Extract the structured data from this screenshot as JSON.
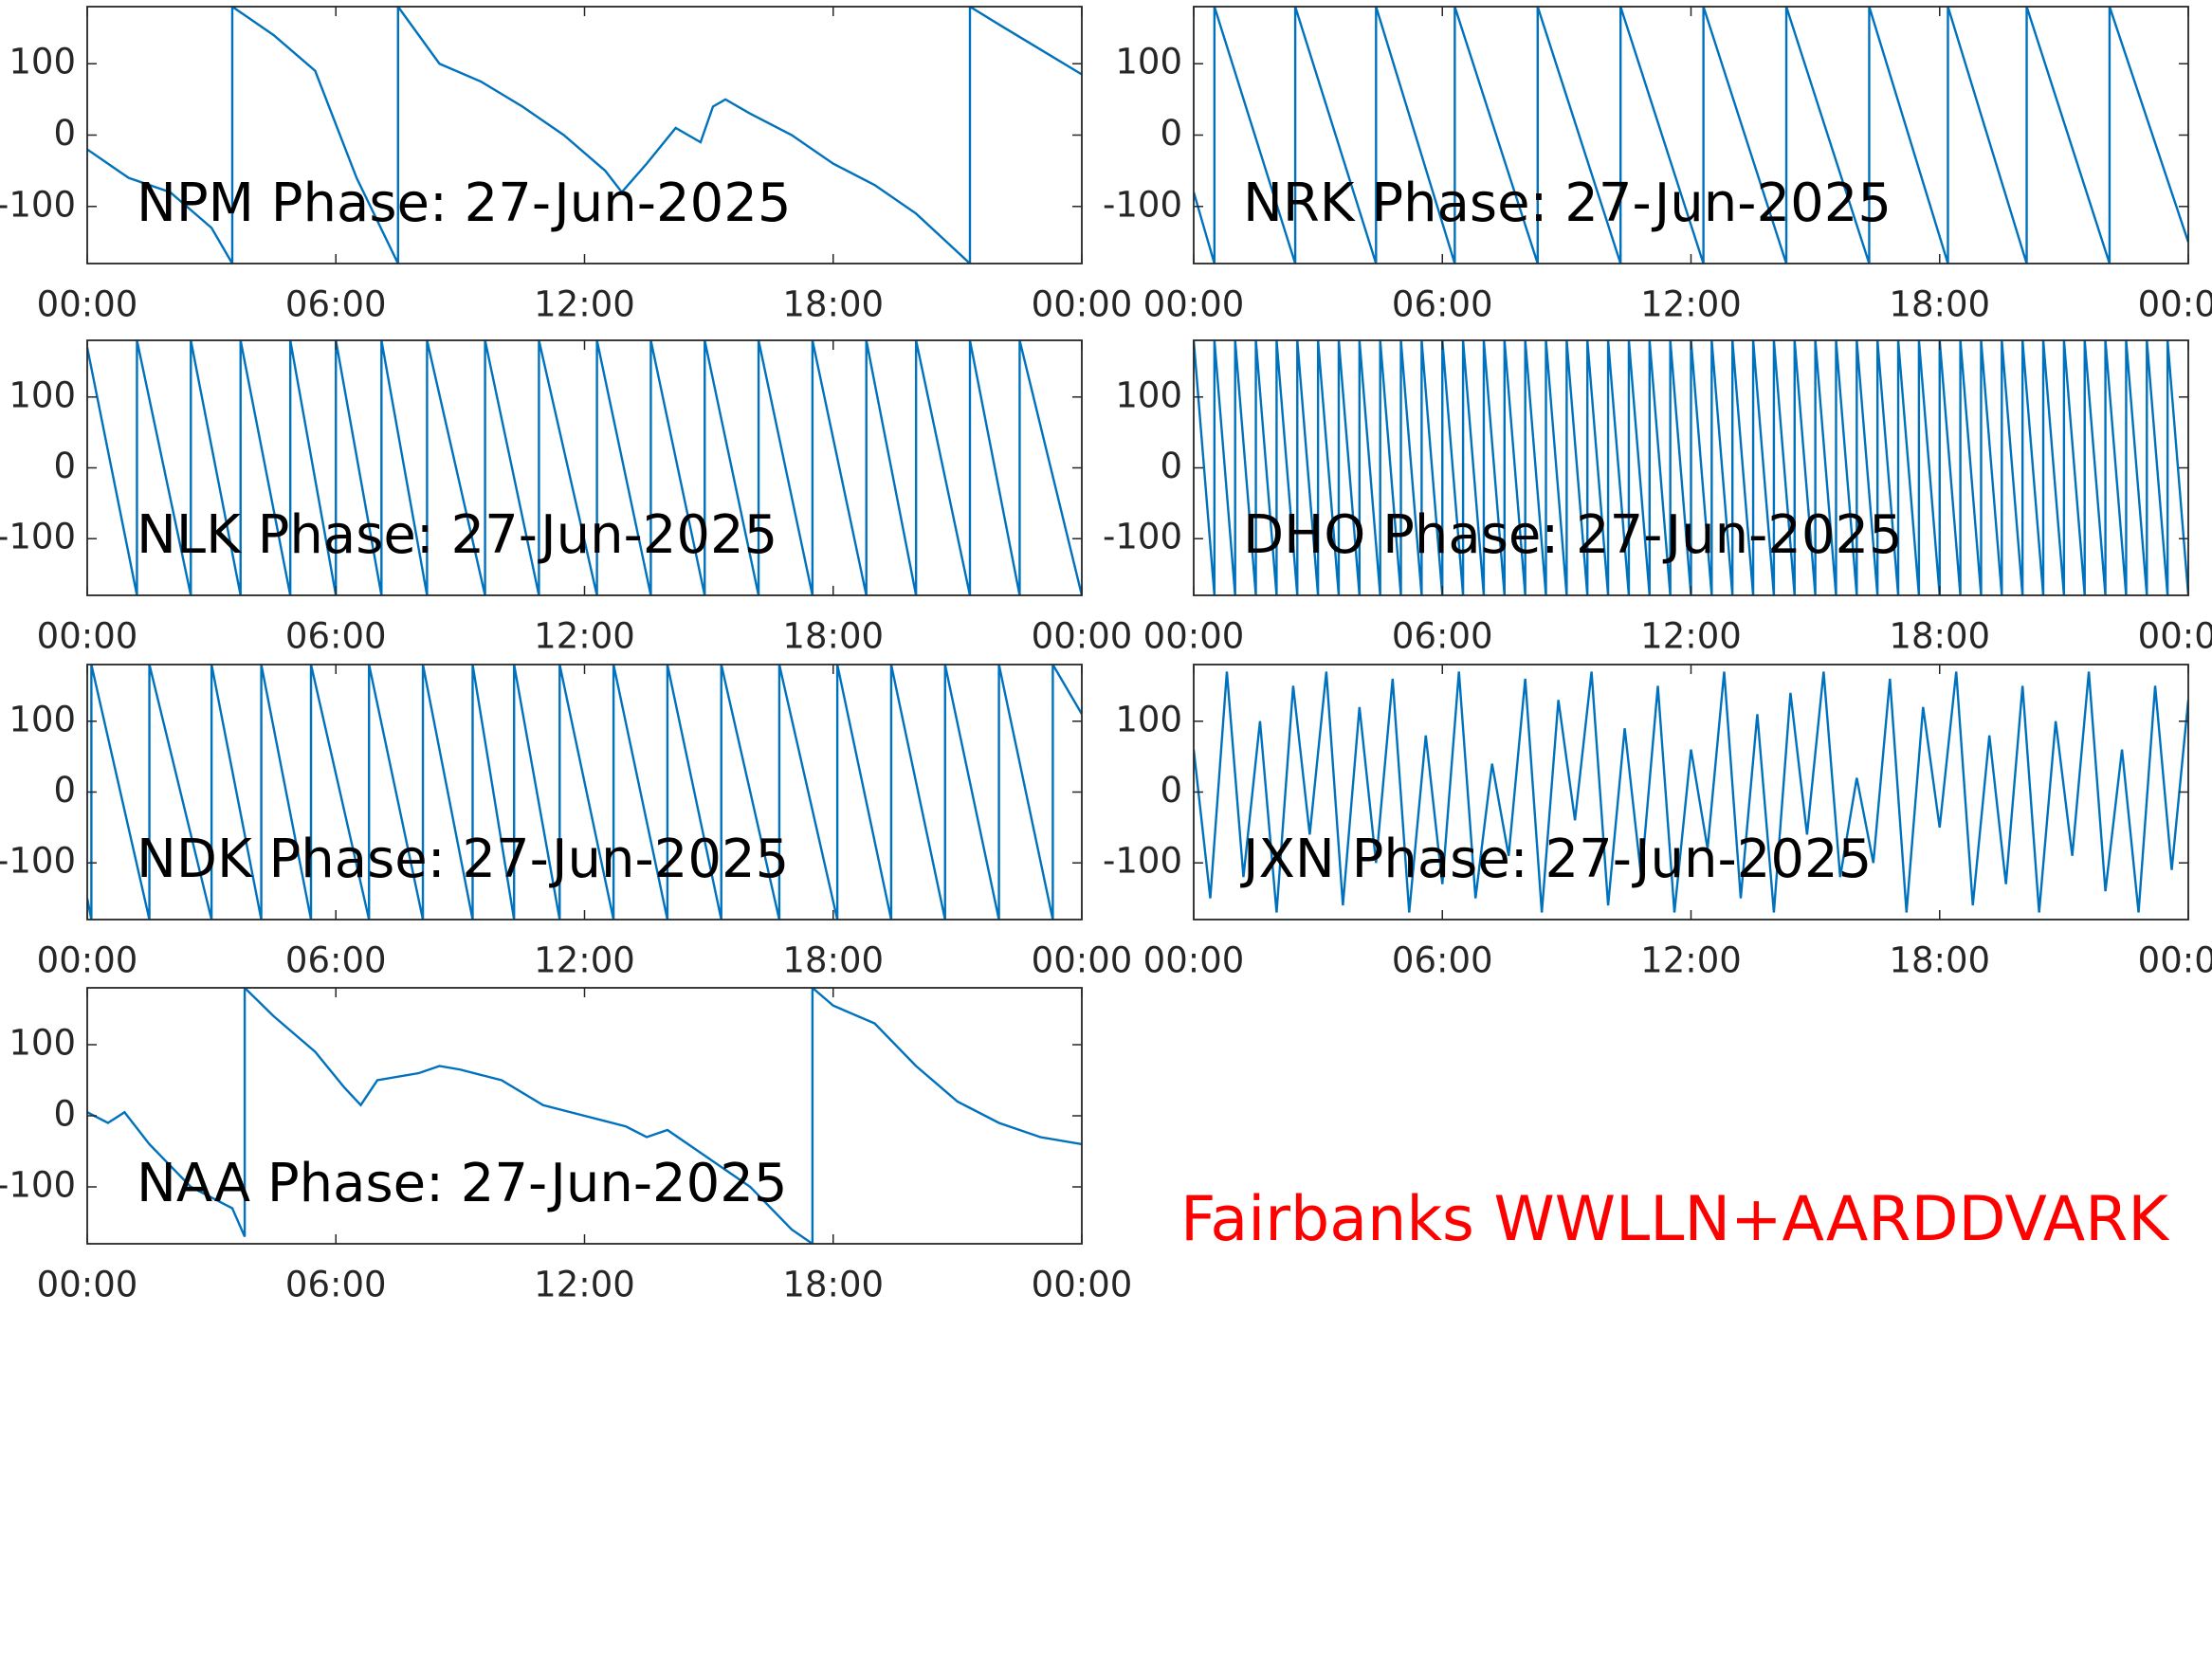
{
  "chart_data": [
    {
      "type": "line",
      "title": "NPM Phase: 27-Jun-2025",
      "color": "#0072bd",
      "x": [
        0,
        1,
        2,
        3,
        3.5,
        3.5,
        4.5,
        5.5,
        6.5,
        7.5,
        7.5,
        8.5,
        9.5,
        10.5,
        11.5,
        12.5,
        12.9,
        13.5,
        14.2,
        14.8,
        15.1,
        15.4,
        16,
        17,
        18,
        19,
        20,
        21.3,
        21.3,
        22,
        23,
        24
      ],
      "values": [
        -20,
        -60,
        -80,
        -130,
        -180,
        180,
        140,
        90,
        -60,
        -180,
        180,
        100,
        75,
        40,
        0,
        -50,
        -80,
        -40,
        10,
        -10,
        40,
        50,
        30,
        0,
        -40,
        -70,
        -110,
        -180,
        180,
        155,
        120,
        85
      ],
      "xlim": [
        0,
        24
      ],
      "xticks": [
        {
          "value": 0,
          "label": "00:00"
        },
        {
          "value": 6,
          "label": "06:00"
        },
        {
          "value": 12,
          "label": "12:00"
        },
        {
          "value": 18,
          "label": "18:00"
        },
        {
          "value": 24,
          "label": "00:00"
        }
      ],
      "ylim": [
        -180,
        180
      ],
      "yticks": [
        -100,
        0,
        100
      ]
    },
    {
      "type": "line",
      "title": "NRK Phase: 27-Jun-2025",
      "color": "#0072bd",
      "x": [
        0,
        0.5,
        0.5,
        2.45,
        2.45,
        4.4,
        4.4,
        6.3,
        6.3,
        8.3,
        8.3,
        10.3,
        10.3,
        12.3,
        12.3,
        14.3,
        14.3,
        16.3,
        16.3,
        18.2,
        18.2,
        20.1,
        20.1,
        22.1,
        22.1,
        24
      ],
      "values": [
        -80,
        -180,
        180,
        -180,
        180,
        -180,
        180,
        -180,
        180,
        -180,
        180,
        -180,
        180,
        -180,
        180,
        -180,
        180,
        -180,
        180,
        -180,
        180,
        -180,
        180,
        -180,
        180,
        -150
      ],
      "xlim": [
        0,
        24
      ],
      "xticks": [
        {
          "value": 0,
          "label": "00:00"
        },
        {
          "value": 6,
          "label": "06:00"
        },
        {
          "value": 12,
          "label": "12:00"
        },
        {
          "value": 18,
          "label": "18:00"
        },
        {
          "value": 24,
          "label": "00:00"
        }
      ],
      "ylim": [
        -180,
        180
      ],
      "yticks": [
        -100,
        0,
        100
      ]
    },
    {
      "type": "line",
      "title": "NLK Phase: 27-Jun-2025",
      "color": "#0072bd",
      "x": [
        0,
        1.2,
        1.2,
        2.5,
        2.5,
        3.7,
        3.7,
        4.9,
        4.9,
        6,
        6,
        7.1,
        7.1,
        8.2,
        8.2,
        9.6,
        9.6,
        10.9,
        10.9,
        12.3,
        12.3,
        13.6,
        13.6,
        14.9,
        14.9,
        16.2,
        16.2,
        17.5,
        17.5,
        18.8,
        18.8,
        20,
        20,
        21.3,
        21.3,
        22.5,
        22.5,
        24
      ],
      "values": [
        170,
        -180,
        180,
        -180,
        180,
        -180,
        180,
        -180,
        180,
        -180,
        180,
        -180,
        180,
        -180,
        180,
        -180,
        180,
        -180,
        180,
        -180,
        180,
        -180,
        180,
        -180,
        180,
        -180,
        180,
        -180,
        180,
        -180,
        180,
        -180,
        180,
        -180,
        180,
        -180,
        180,
        -180
      ],
      "xlim": [
        0,
        24
      ],
      "xticks": [
        {
          "value": 0,
          "label": "00:00"
        },
        {
          "value": 6,
          "label": "06:00"
        },
        {
          "value": 12,
          "label": "12:00"
        },
        {
          "value": 18,
          "label": "18:00"
        },
        {
          "value": 24,
          "label": "00:00"
        }
      ],
      "ylim": [
        -180,
        180
      ],
      "yticks": [
        -100,
        0,
        100
      ]
    },
    {
      "type": "line",
      "title": "DHO Phase: 27-Jun-2025",
      "color": "#0072bd",
      "x": [
        0,
        0.5,
        0.5,
        1,
        1,
        1.5,
        1.5,
        2,
        2,
        2.5,
        2.5,
        3,
        3,
        3.5,
        3.5,
        4,
        4,
        4.5,
        4.5,
        5,
        5,
        5.5,
        5.5,
        6,
        6,
        6.5,
        6.5,
        7,
        7,
        7.5,
        7.5,
        8,
        8,
        8.5,
        8.5,
        9,
        9,
        9.5,
        9.5,
        10,
        10,
        10.5,
        10.5,
        11,
        11,
        11.5,
        11.5,
        12,
        12,
        12.5,
        12.5,
        13,
        13,
        13.5,
        13.5,
        14,
        14,
        14.5,
        14.5,
        15,
        15,
        15.5,
        15.5,
        16,
        16,
        16.5,
        16.5,
        17,
        17,
        17.5,
        17.5,
        18,
        18,
        18.5,
        18.5,
        19,
        19,
        19.5,
        19.5,
        20,
        20,
        20.5,
        20.5,
        21,
        21,
        21.5,
        21.5,
        22,
        22,
        22.5,
        22.5,
        23,
        23,
        23.5,
        23.5,
        24
      ],
      "values": [
        180,
        -180,
        180,
        -180,
        180,
        -180,
        180,
        -180,
        180,
        -180,
        180,
        -180,
        180,
        -180,
        180,
        -180,
        180,
        -180,
        180,
        -180,
        180,
        -180,
        180,
        -180,
        180,
        -180,
        180,
        -180,
        180,
        -180,
        180,
        -180,
        180,
        -180,
        180,
        -180,
        180,
        -180,
        180,
        -180,
        180,
        -180,
        180,
        -180,
        180,
        -180,
        180,
        -180,
        180,
        -180,
        180,
        -180,
        180,
        -180,
        180,
        -180,
        180,
        -180,
        180,
        -180,
        180,
        -180,
        180,
        -180,
        180,
        -180,
        180,
        -180,
        180,
        -180,
        180,
        -180,
        180,
        -180,
        180,
        -180,
        180,
        -180,
        180,
        -180,
        180,
        -180,
        180,
        -180,
        180,
        -180,
        180,
        -180,
        180,
        -180,
        180,
        -180,
        180,
        -180,
        180,
        -180
      ],
      "xlim": [
        0,
        24
      ],
      "xticks": [
        {
          "value": 0,
          "label": "00:00"
        },
        {
          "value": 6,
          "label": "06:00"
        },
        {
          "value": 12,
          "label": "12:00"
        },
        {
          "value": 18,
          "label": "18:00"
        },
        {
          "value": 24,
          "label": "00:00"
        }
      ],
      "ylim": [
        -180,
        180
      ],
      "yticks": [
        -100,
        0,
        100
      ]
    },
    {
      "type": "line",
      "title": "NDK Phase: 27-Jun-2025",
      "color": "#0072bd",
      "x": [
        0,
        0.1,
        0.1,
        1.5,
        1.5,
        3,
        3,
        4.2,
        4.2,
        5.4,
        5.4,
        6.8,
        6.8,
        8.1,
        8.1,
        9.3,
        9.3,
        10.3,
        10.3,
        11.4,
        11.4,
        12.7,
        12.7,
        14,
        14,
        15.3,
        15.3,
        16.7,
        16.7,
        18.1,
        18.1,
        19.4,
        19.4,
        20.7,
        20.7,
        22,
        22,
        23.3,
        23.3,
        24
      ],
      "values": [
        -150,
        -180,
        180,
        -180,
        180,
        -180,
        180,
        -180,
        180,
        -180,
        180,
        -180,
        180,
        -180,
        180,
        -180,
        180,
        -180,
        180,
        -180,
        180,
        -180,
        180,
        -180,
        180,
        -180,
        180,
        -180,
        180,
        -180,
        180,
        -180,
        180,
        -180,
        180,
        -180,
        180,
        -180,
        180,
        110
      ],
      "xlim": [
        0,
        24
      ],
      "xticks": [
        {
          "value": 0,
          "label": "00:00"
        },
        {
          "value": 6,
          "label": "06:00"
        },
        {
          "value": 12,
          "label": "12:00"
        },
        {
          "value": 18,
          "label": "18:00"
        },
        {
          "value": 24,
          "label": "00:00"
        }
      ],
      "ylim": [
        -180,
        180
      ],
      "yticks": [
        -100,
        0,
        100
      ]
    },
    {
      "type": "line",
      "title": "JXN Phase: 27-Jun-2025",
      "color": "#0072bd",
      "x": [
        0,
        0.4,
        0.8,
        1.2,
        1.6,
        2,
        2.4,
        2.8,
        3.2,
        3.6,
        4,
        4.4,
        4.8,
        5.2,
        5.6,
        6,
        6.4,
        6.8,
        7.2,
        7.6,
        8,
        8.4,
        8.8,
        9.2,
        9.6,
        10,
        10.4,
        10.8,
        11.2,
        11.6,
        12,
        12.4,
        12.8,
        13.2,
        13.6,
        14,
        14.4,
        14.8,
        15.2,
        15.6,
        16,
        16.4,
        16.8,
        17.2,
        17.6,
        18,
        18.4,
        18.8,
        19.2,
        19.6,
        20,
        20.4,
        20.8,
        21.2,
        21.6,
        22,
        22.4,
        22.8,
        23.2,
        23.6,
        24
      ],
      "values": [
        60,
        -150,
        170,
        -120,
        100,
        -170,
        150,
        -60,
        170,
        -160,
        120,
        -100,
        160,
        -170,
        80,
        -130,
        170,
        -150,
        40,
        -90,
        160,
        -170,
        130,
        -40,
        170,
        -160,
        90,
        -120,
        150,
        -170,
        60,
        -80,
        170,
        -150,
        110,
        -170,
        140,
        -60,
        170,
        -120,
        20,
        -100,
        160,
        -170,
        120,
        -50,
        170,
        -160,
        80,
        -130,
        150,
        -170,
        100,
        -90,
        170,
        -140,
        60,
        -170,
        150,
        -110,
        130
      ],
      "xlim": [
        0,
        24
      ],
      "xticks": [
        {
          "value": 0,
          "label": "00:00"
        },
        {
          "value": 6,
          "label": "06:00"
        },
        {
          "value": 12,
          "label": "12:00"
        },
        {
          "value": 18,
          "label": "18:00"
        },
        {
          "value": 24,
          "label": "00:00"
        }
      ],
      "ylim": [
        -180,
        180
      ],
      "yticks": [
        -100,
        0,
        100
      ]
    },
    {
      "type": "line",
      "title": "NAA Phase: 27-Jun-2025",
      "color": "#0072bd",
      "x": [
        0,
        0.5,
        0.9,
        1.5,
        2.5,
        3.5,
        3.8,
        3.8,
        4.5,
        5.5,
        6.2,
        6.6,
        7,
        8,
        8.5,
        9,
        10,
        11,
        12,
        13,
        13.5,
        14,
        15,
        16,
        17,
        17.5,
        17.5,
        18,
        19,
        20,
        21,
        22,
        23,
        24
      ],
      "values": [
        5,
        -10,
        5,
        -40,
        -100,
        -130,
        -170,
        180,
        140,
        90,
        40,
        15,
        50,
        60,
        70,
        65,
        50,
        15,
        0,
        -15,
        -30,
        -20,
        -60,
        -100,
        -160,
        -180,
        180,
        155,
        130,
        70,
        20,
        -10,
        -30,
        -40
      ],
      "xlim": [
        0,
        24
      ],
      "xticks": [
        {
          "value": 0,
          "label": "00:00"
        },
        {
          "value": 6,
          "label": "06:00"
        },
        {
          "value": 12,
          "label": "12:00"
        },
        {
          "value": 18,
          "label": "18:00"
        },
        {
          "value": 24,
          "label": "00:00"
        }
      ],
      "ylim": [
        -180,
        180
      ],
      "yticks": [
        -100,
        0,
        100
      ]
    }
  ],
  "annotation": "Fairbanks WWLLN+AARDDVARK"
}
